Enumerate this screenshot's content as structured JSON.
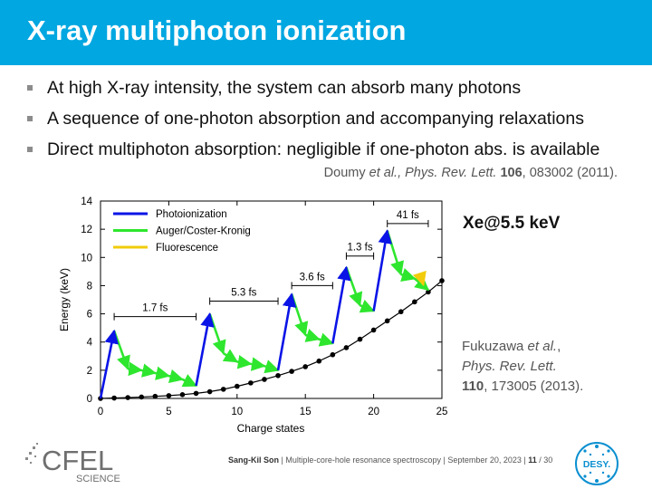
{
  "slide": {
    "title": "X-ray multiphoton ionization",
    "bullets": [
      "At high X-ray intensity, the system can absorb many photons",
      "A sequence of one-photon absorption and accompanying relaxations",
      "Direct multiphoton absorption: negligible if one-photon abs. is available"
    ],
    "ref1": {
      "authors": "Doumy",
      "etal": "et al.,",
      "journal": "Phys. Rev. Lett.",
      "volume": "106",
      "rest": ", 083002 (2011)."
    },
    "system_label": "Xe@5.5 keV",
    "ref2": {
      "line1_a": "Fukuzawa ",
      "line1_b": "et al.",
      "line1_c": ",",
      "line2": "Phys. Rev. Lett.",
      "line3_vol": "110",
      "line3_rest": ", 173005 (2013)."
    }
  },
  "chart_data": {
    "type": "line",
    "xlabel": "Charge states",
    "ylabel": "Energy (keV)",
    "xlim": [
      0,
      25
    ],
    "ylim": [
      0,
      14
    ],
    "x_ticks": [
      0,
      5,
      10,
      15,
      20,
      25
    ],
    "y_ticks": [
      0,
      2,
      4,
      6,
      8,
      10,
      12,
      14
    ],
    "legend": [
      {
        "label": "Photoionization",
        "color": "#0a14e6"
      },
      {
        "label": "Auger/Coster-Kronig",
        "color": "#2ee62e"
      },
      {
        "label": "Fluorescence",
        "color": "#f2cc0c"
      }
    ],
    "legend_position": "top-left",
    "ground_state_energies": [
      [
        0,
        0.0
      ],
      [
        1,
        0.03
      ],
      [
        2,
        0.06
      ],
      [
        3,
        0.1
      ],
      [
        4,
        0.15
      ],
      [
        5,
        0.2
      ],
      [
        6,
        0.27
      ],
      [
        7,
        0.36
      ],
      [
        8,
        0.48
      ],
      [
        9,
        0.65
      ],
      [
        10,
        0.86
      ],
      [
        11,
        1.1
      ],
      [
        12,
        1.35
      ],
      [
        13,
        1.62
      ],
      [
        14,
        1.92
      ],
      [
        15,
        2.25
      ],
      [
        16,
        2.65
      ],
      [
        17,
        3.1
      ],
      [
        18,
        3.6
      ],
      [
        19,
        4.2
      ],
      [
        20,
        4.85
      ],
      [
        21,
        5.5
      ],
      [
        22,
        6.15
      ],
      [
        23,
        6.85
      ],
      [
        24,
        7.55
      ],
      [
        25,
        8.35
      ]
    ],
    "photoionization_arrows": [
      {
        "from": [
          0,
          0.0
        ],
        "to": [
          1,
          4.8
        ]
      },
      {
        "from": [
          7,
          0.9
        ],
        "to": [
          8,
          6.0
        ]
      },
      {
        "from": [
          13,
          2.0
        ],
        "to": [
          14,
          7.4
        ]
      },
      {
        "from": [
          17,
          3.9
        ],
        "to": [
          18,
          9.3
        ]
      },
      {
        "from": [
          20,
          6.2
        ],
        "to": [
          21,
          11.9
        ]
      }
    ],
    "auger_chains": [
      [
        [
          1,
          4.8
        ],
        [
          2,
          2.1
        ],
        [
          3,
          2.0
        ],
        [
          4,
          1.8
        ],
        [
          5,
          1.6
        ],
        [
          6,
          1.35
        ],
        [
          7,
          0.9
        ]
      ],
      [
        [
          8,
          6.0
        ],
        [
          9,
          3.2
        ],
        [
          10,
          2.6
        ],
        [
          11,
          2.45
        ],
        [
          12,
          2.3
        ],
        [
          13,
          2.0
        ]
      ],
      [
        [
          14,
          7.4
        ],
        [
          15,
          4.5
        ],
        [
          16,
          4.2
        ],
        [
          17,
          3.9
        ]
      ],
      [
        [
          18,
          9.3
        ],
        [
          19,
          6.6
        ],
        [
          20,
          6.2
        ]
      ],
      [
        [
          21,
          11.9
        ],
        [
          22,
          8.8
        ],
        [
          23,
          8.5
        ],
        [
          24,
          7.7
        ]
      ]
    ],
    "fluorescence_arrows": [
      {
        "from": [
          23.55,
          8.35
        ],
        "to": [
          23.65,
          8.05
        ]
      }
    ],
    "time_annotations": [
      {
        "label": "1.7 fs",
        "x_range": [
          1,
          7
        ],
        "y": 5.8
      },
      {
        "label": "5.3 fs",
        "x_range": [
          8,
          13
        ],
        "y": 6.9
      },
      {
        "label": "3.6 fs",
        "x_range": [
          14,
          17
        ],
        "y": 8.0
      },
      {
        "label": "1.3 fs",
        "x_range": [
          18,
          20
        ],
        "y": 10.1
      },
      {
        "label": "41 fs",
        "x_range": [
          21,
          24
        ],
        "y": 12.4
      }
    ]
  },
  "footer": {
    "author": "Sang-Kil Son",
    "talk": "Multiple-core-hole resonance spectroscopy",
    "date": "September 20, 2023",
    "page": "11",
    "total": "/ 30"
  },
  "logos": {
    "cfel_text": "CFEL",
    "cfel_sub": "SCIENCE",
    "desy_text": "DESY."
  }
}
